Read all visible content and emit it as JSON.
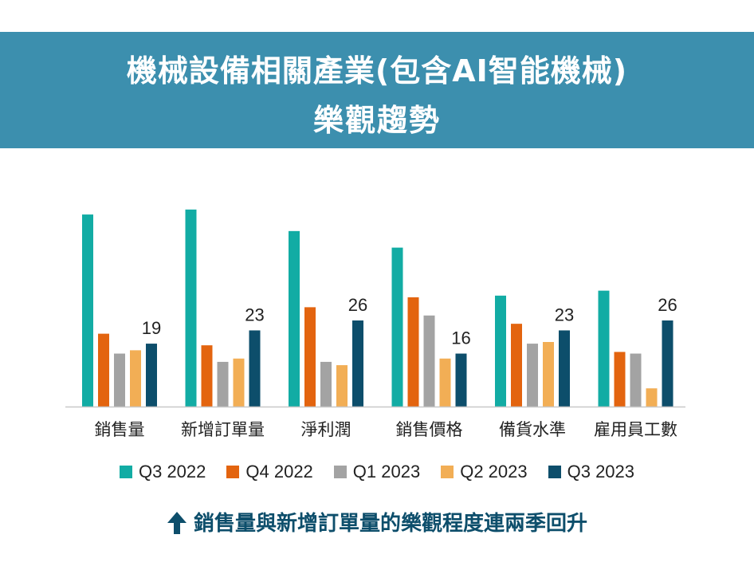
{
  "header": {
    "title_line1": "機械設備相關產業(包含AI智能機械)",
    "title_line2": "樂觀趨勢"
  },
  "chart_data": {
    "type": "bar",
    "categories": [
      "銷售量",
      "新增訂單量",
      "淨利潤",
      "銷售價格",
      "備貨水準",
      "雇用員工數"
    ],
    "series": [
      {
        "name": "Q3 2022",
        "color": "#12aca4",
        "values": [
          58,
          59.5,
          53,
          48,
          33.5,
          35
        ]
      },
      {
        "name": "Q4 2022",
        "color": "#e3640f",
        "values": [
          22,
          18.5,
          30,
          33,
          25,
          16.5
        ]
      },
      {
        "name": "Q1 2023",
        "color": "#a3a3a3",
        "values": [
          16,
          13.5,
          13.5,
          27.5,
          19,
          16
        ]
      },
      {
        "name": "Q2 2023",
        "color": "#f2ae55",
        "values": [
          17,
          14.5,
          12.5,
          14.5,
          19.5,
          5.5
        ]
      },
      {
        "name": "Q3 2023",
        "color": "#0d4e6b",
        "values": [
          19,
          23,
          26,
          16,
          23,
          26
        ]
      }
    ],
    "data_labels": [
      "19",
      "23",
      "26",
      "16",
      "23",
      "26"
    ],
    "ylim": [
      0,
      65
    ],
    "grid": false,
    "legend_position": "bottom"
  },
  "footer": {
    "text": "銷售量與新增訂單量的樂觀程度連兩季回升",
    "icon": "up-arrow-icon"
  }
}
